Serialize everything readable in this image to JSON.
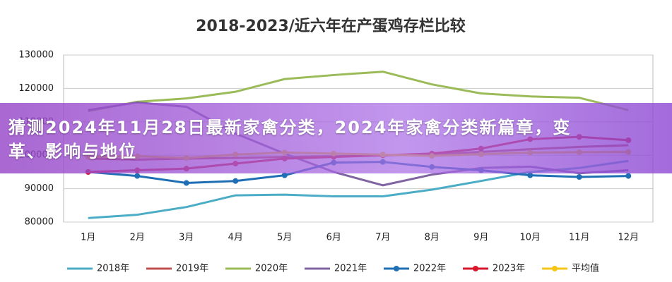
{
  "headline": "猜测2024年11月28日最新家禽分类，2024年家禽分类新篇章，变革、影响与地位",
  "chart_data": {
    "type": "line",
    "title": "2018-2023/近六年在产蛋鸡存栏比较",
    "categories": [
      "1月",
      "2月",
      "3月",
      "4月",
      "5月",
      "6月",
      "7月",
      "8月",
      "9月",
      "10月",
      "11月",
      "12月"
    ],
    "ylim": [
      80000,
      130000
    ],
    "yticks": [
      80000,
      90000,
      100000,
      110000,
      120000,
      130000
    ],
    "grid": true,
    "legend": "bottom",
    "series": [
      {
        "name": "2018年",
        "color": "#4bacc6",
        "markers": false,
        "values": [
          81200,
          82200,
          84500,
          88000,
          88200,
          87700,
          87700,
          89700,
          92300,
          95000,
          96200,
          98300
        ]
      },
      {
        "name": "2019年",
        "color": "#c0504d",
        "markers": false,
        "values": [
          99000,
          98700,
          99000,
          99200,
          99500,
          99700,
          100000,
          100300,
          101000,
          101800,
          102500,
          103000
        ]
      },
      {
        "name": "2020年",
        "color": "#9bbb59",
        "markers": false,
        "values": [
          113200,
          116000,
          117000,
          119000,
          122800,
          124000,
          125000,
          121200,
          118500,
          117600,
          117200,
          113500
        ]
      },
      {
        "name": "2021年",
        "color": "#8064a2",
        "markers": false,
        "values": [
          113500,
          115800,
          114500,
          106500,
          100500,
          95000,
          91000,
          94200,
          96200,
          96600,
          94600,
          95500
        ]
      },
      {
        "name": "2022年",
        "color": "#1f6fb4",
        "markers": true,
        "values": [
          95000,
          93800,
          91700,
          92300,
          94000,
          97800,
          98000,
          96500,
          95500,
          94000,
          93500,
          93800
        ]
      },
      {
        "name": "2023年",
        "color": "#d9172b",
        "markers": true,
        "values": [
          95000,
          95500,
          96000,
          97500,
          99000,
          99500,
          100000,
          100500,
          102000,
          104800,
          105500,
          104500
        ]
      },
      {
        "name": "平均值",
        "color": "#f5c518",
        "markers": true,
        "values": [
          99500,
          99700,
          99200,
          100200,
          100800,
          100500,
          100200,
          99800,
          100300,
          100800,
          100900,
          101000
        ]
      }
    ]
  }
}
